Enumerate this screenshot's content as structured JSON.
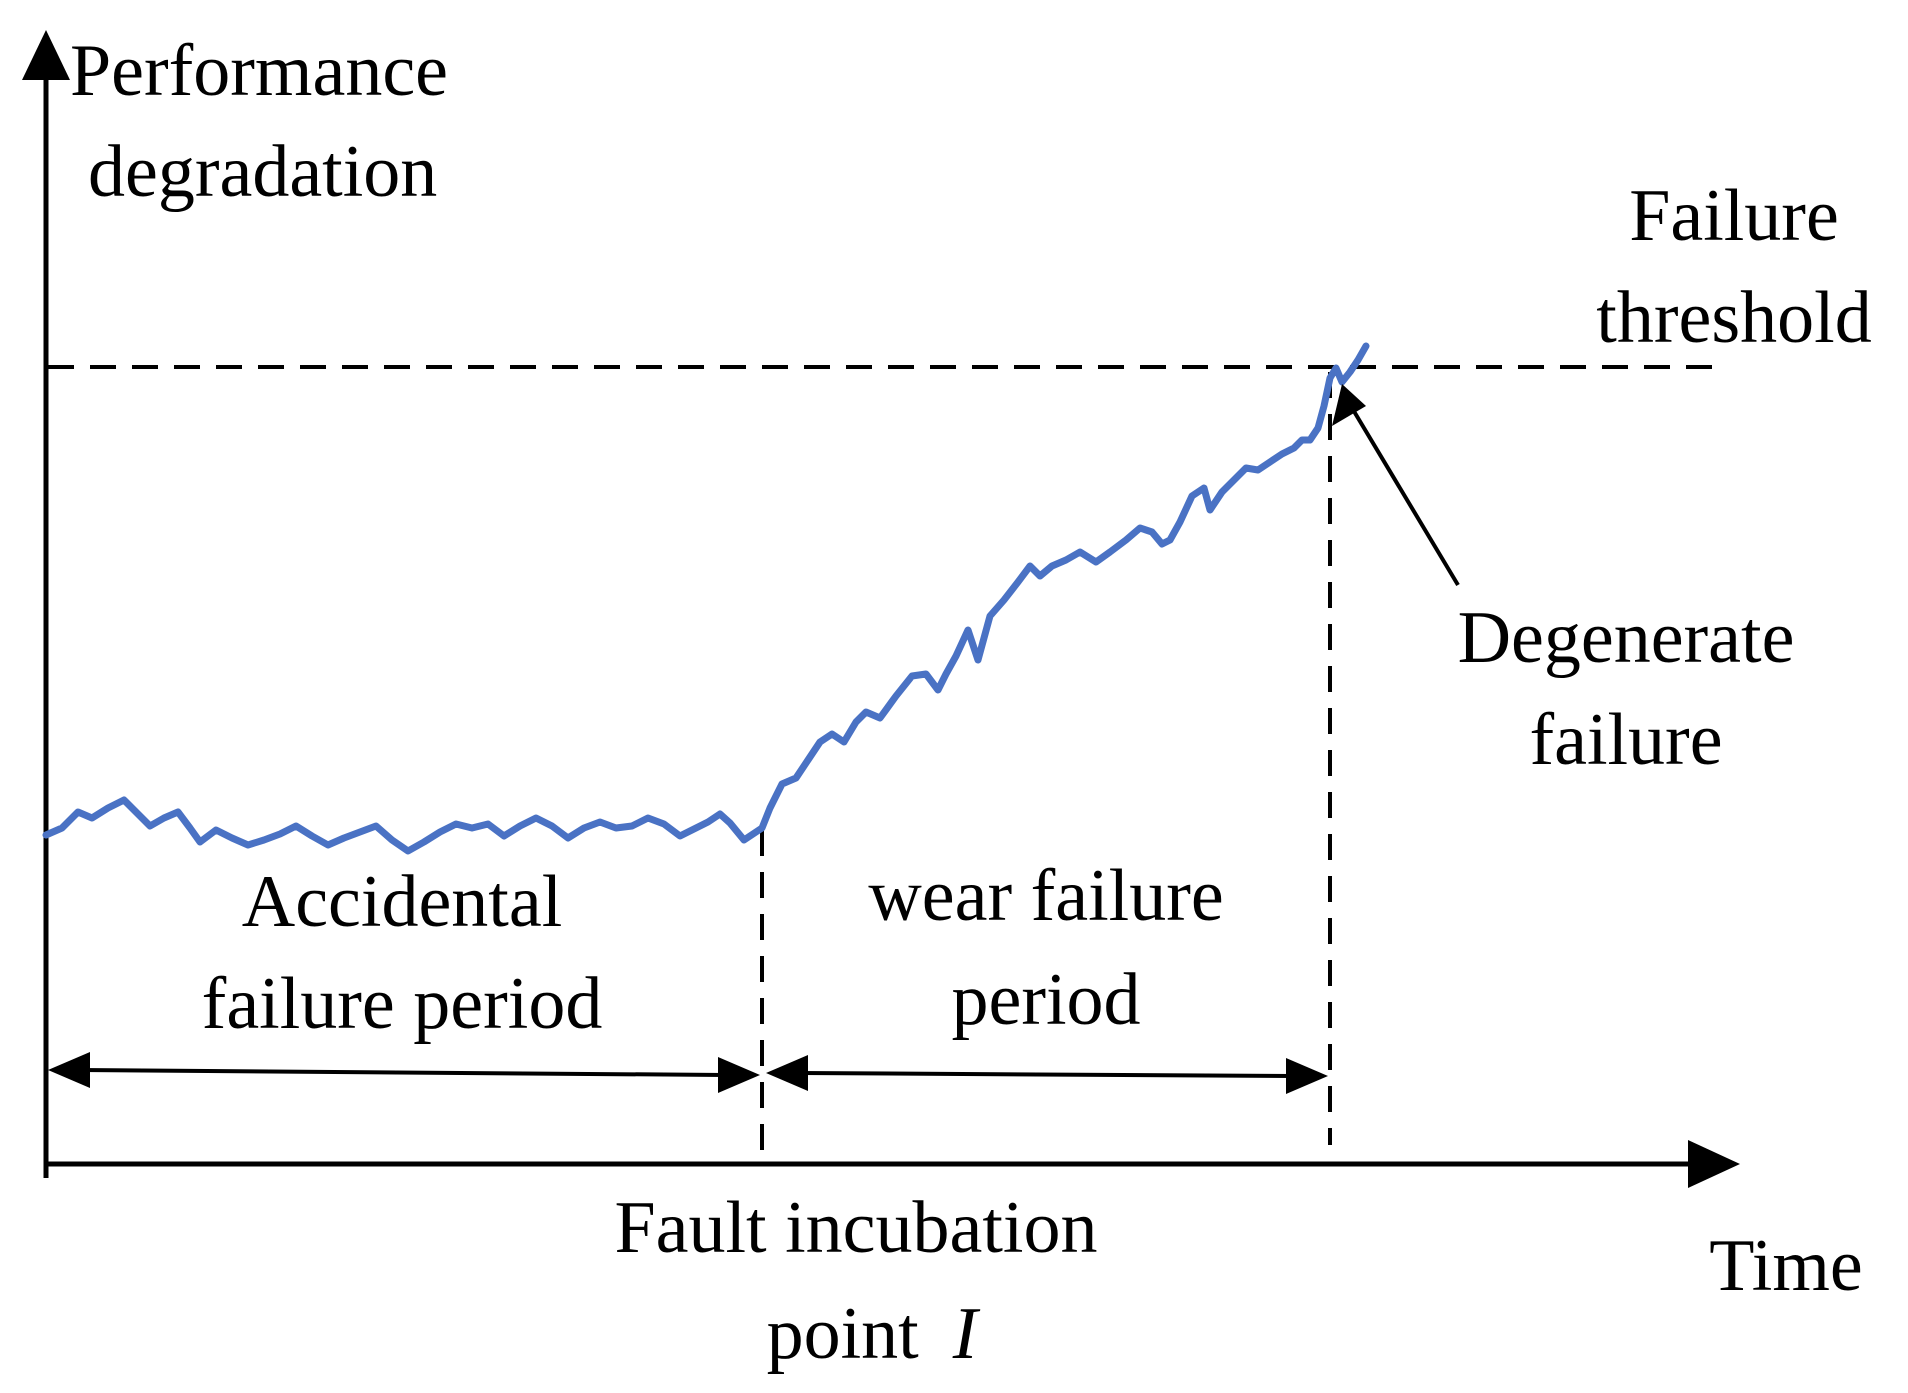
{
  "labels": {
    "y_axis_line1": "Performance",
    "y_axis_line2": "degradation",
    "x_axis": "Time",
    "threshold_line1": "Failure",
    "threshold_line2": "threshold",
    "degenerate_line1": "Degenerate",
    "degenerate_line2": "failure",
    "accidental_line1": "Accidental",
    "accidental_line2": "failure period",
    "wear_line1": "wear failure",
    "wear_line2": "period",
    "incubation_line1": "Fault incubation",
    "incubation_line2_text": "point",
    "incubation_symbol": "I"
  },
  "colors": {
    "curve": "#4a72c4",
    "axes": "#000000"
  }
}
